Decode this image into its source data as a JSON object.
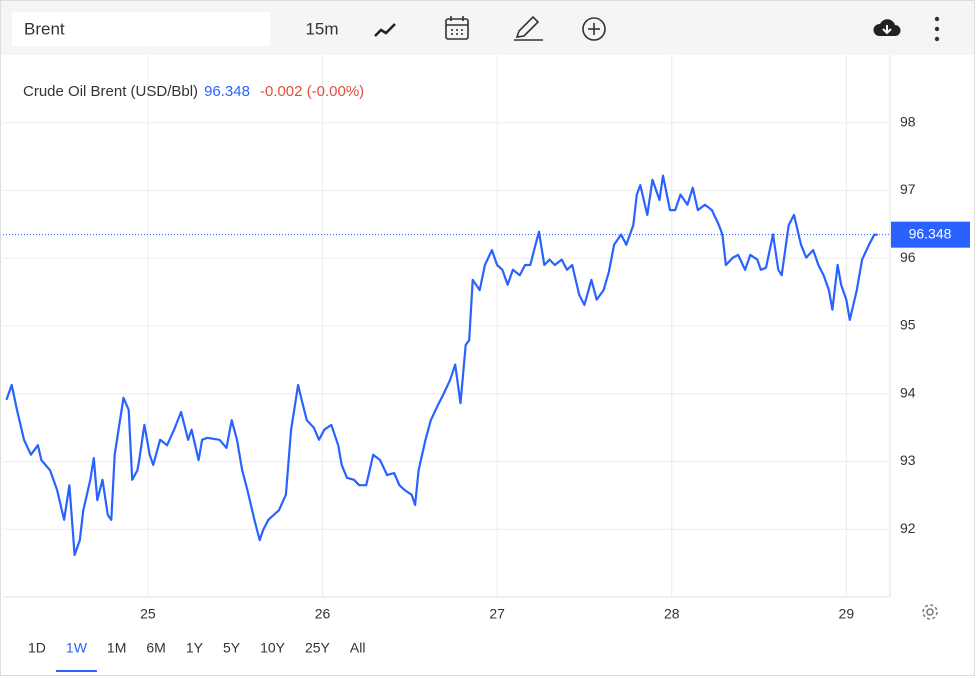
{
  "toolbar": {
    "symbol": "Brent",
    "interval": "15m"
  },
  "ranges": [
    "1D",
    "1W",
    "1M",
    "6M",
    "1Y",
    "5Y",
    "10Y",
    "25Y",
    "All"
  ],
  "active_range": 1,
  "chart_data": {
    "type": "line",
    "title": "Crude Oil Brent (USD/Bbl)",
    "last": 96.348,
    "change": "-0.002 (-0.00%)",
    "xlim": [
      24.17,
      29.25
    ],
    "xticks": [
      25,
      26,
      27,
      28,
      29
    ],
    "ylim": [
      91,
      99
    ],
    "yticks": [
      92,
      93,
      94,
      95,
      96,
      97,
      98
    ],
    "grid": true,
    "series": [
      {
        "color": "#2962ff",
        "x": [
          24.19,
          24.22,
          24.25,
          24.29,
          24.33,
          24.37,
          24.39,
          24.44,
          24.48,
          24.52,
          24.55,
          24.58,
          24.61,
          24.63,
          24.67,
          24.69,
          24.71,
          24.74,
          24.77,
          24.79,
          24.81,
          24.84,
          24.86,
          24.89,
          24.91,
          24.94,
          24.95,
          24.98,
          25.01,
          25.03,
          25.07,
          25.11,
          25.15,
          25.19,
          25.23,
          25.25,
          25.29,
          25.31,
          25.34,
          25.41,
          25.45,
          25.48,
          25.51,
          25.54,
          25.57,
          25.61,
          25.64,
          25.66,
          25.69,
          25.72,
          25.75,
          25.79,
          25.82,
          25.86,
          25.88,
          25.91,
          25.95,
          25.98,
          26.01,
          26.05,
          26.09,
          26.11,
          26.14,
          26.18,
          26.21,
          26.25,
          26.27,
          26.29,
          26.33,
          26.37,
          26.41,
          26.44,
          26.47,
          26.51,
          26.53,
          26.55,
          26.59,
          26.62,
          26.66,
          26.69,
          26.73,
          26.76,
          26.79,
          26.82,
          26.84,
          26.86,
          26.9,
          26.93,
          26.97,
          27.0,
          27.03,
          27.06,
          27.09,
          27.13,
          27.16,
          27.19,
          27.22,
          27.24,
          27.27,
          27.3,
          27.33,
          27.37,
          27.4,
          27.43,
          27.47,
          27.5,
          27.54,
          27.57,
          27.61,
          27.64,
          27.67,
          27.71,
          27.74,
          27.78,
          27.8,
          27.82,
          27.86,
          27.89,
          27.93,
          27.95,
          27.99,
          28.02,
          28.05,
          28.09,
          28.12,
          28.15,
          28.19,
          28.23,
          28.27,
          28.29,
          28.31,
          28.35,
          28.38,
          28.42,
          28.45,
          28.49,
          28.51,
          28.54,
          28.58,
          28.61,
          28.63,
          28.67,
          28.7,
          28.74,
          28.77,
          28.81,
          28.84,
          28.87,
          28.9,
          28.92,
          28.95,
          28.97,
          29.0,
          29.02,
          29.06,
          29.09,
          29.13,
          29.16,
          29.18
        ],
        "values": [
          93.91,
          94.13,
          93.76,
          93.32,
          93.1,
          93.24,
          93.02,
          92.87,
          92.58,
          92.14,
          92.65,
          91.62,
          91.84,
          92.28,
          92.73,
          93.05,
          92.43,
          92.73,
          92.21,
          92.14,
          93.1,
          93.61,
          93.94,
          93.76,
          92.73,
          92.87,
          93.02,
          93.54,
          93.1,
          92.95,
          93.32,
          93.24,
          93.47,
          93.73,
          93.32,
          93.47,
          93.02,
          93.32,
          93.35,
          93.32,
          93.2,
          93.61,
          93.32,
          92.87,
          92.58,
          92.14,
          91.84,
          91.99,
          92.14,
          92.21,
          92.28,
          92.51,
          93.47,
          94.13,
          93.91,
          93.61,
          93.5,
          93.32,
          93.47,
          93.54,
          93.24,
          92.95,
          92.76,
          92.73,
          92.65,
          92.65,
          92.87,
          93.1,
          93.02,
          92.8,
          92.83,
          92.65,
          92.58,
          92.51,
          92.36,
          92.87,
          93.32,
          93.61,
          93.83,
          93.98,
          94.2,
          94.43,
          93.86,
          94.72,
          94.79,
          95.68,
          95.53,
          95.9,
          96.12,
          95.9,
          95.83,
          95.61,
          95.83,
          95.75,
          95.9,
          95.9,
          96.2,
          96.39,
          95.9,
          95.98,
          95.9,
          95.98,
          95.83,
          95.9,
          95.46,
          95.31,
          95.68,
          95.39,
          95.53,
          95.8,
          96.2,
          96.35,
          96.2,
          96.49,
          96.94,
          97.08,
          96.64,
          97.16,
          96.86,
          97.22,
          96.71,
          96.71,
          96.94,
          96.79,
          97.04,
          96.71,
          96.79,
          96.71,
          96.49,
          96.35,
          95.9,
          96.01,
          96.05,
          95.83,
          96.05,
          95.98,
          95.83,
          95.86,
          96.35,
          95.83,
          95.75,
          96.49,
          96.64,
          96.2,
          96.01,
          96.12,
          95.9,
          95.75,
          95.53,
          95.24,
          95.9,
          95.61,
          95.39,
          95.09,
          95.53,
          95.98,
          96.2,
          96.348,
          96.348
        ]
      }
    ]
  }
}
